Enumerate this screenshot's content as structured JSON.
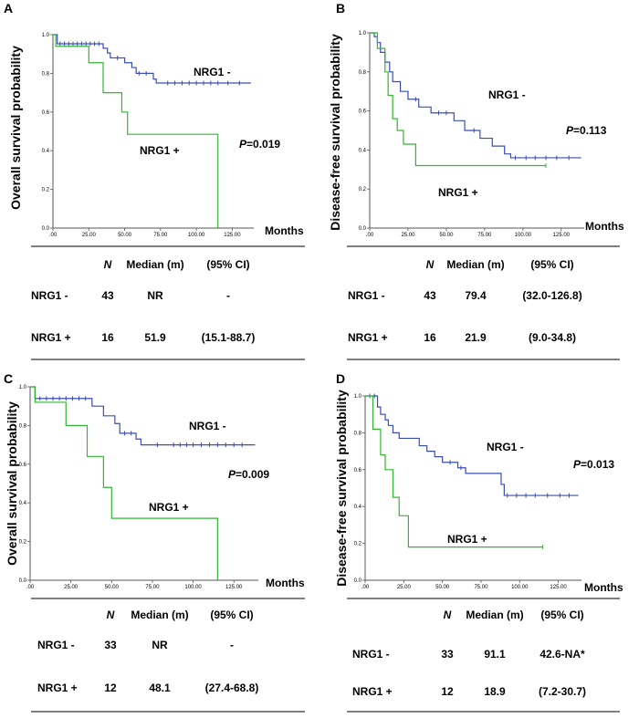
{
  "chart_data": [
    {
      "type": "line",
      "panel": "A",
      "ylabel": "Overall survival probability",
      "xlabel": "Months",
      "xticks": [
        ".00",
        "25.00",
        "50.00",
        "75.00",
        "100.00",
        "125.00"
      ],
      "yticks": [
        "0.0",
        "0.2",
        "0.4",
        "0.6",
        "0.8",
        "1.0"
      ],
      "xlim": [
        0,
        140
      ],
      "ylim": [
        0,
        1
      ],
      "pvalue_label": "P",
      "pvalue_text": "=0.019",
      "series": [
        {
          "name": "NRG1 -",
          "color": "#3a4db5",
          "steps": [
            [
              0,
              1.0
            ],
            [
              3,
              0.953
            ],
            [
              35,
              0.93
            ],
            [
              38,
              0.905
            ],
            [
              40,
              0.88
            ],
            [
              50,
              0.855
            ],
            [
              55,
              0.83
            ],
            [
              58,
              0.8
            ],
            [
              70,
              0.77
            ],
            [
              72,
              0.75
            ],
            [
              138,
              0.75
            ]
          ],
          "censors": [
            5,
            8,
            11,
            14,
            17,
            20,
            23,
            26,
            29,
            32,
            45,
            60,
            65,
            80,
            85,
            90,
            95,
            100,
            105,
            110,
            115,
            122,
            130
          ]
        },
        {
          "name": "NRG1 +",
          "color": "#33b533",
          "steps": [
            [
              0,
              1.0
            ],
            [
              2,
              0.94
            ],
            [
              25,
              0.855
            ],
            [
              35,
              0.7
            ],
            [
              48,
              0.6
            ],
            [
              52,
              0.485
            ],
            [
              115,
              0.0
            ]
          ],
          "censors": []
        }
      ],
      "table": {
        "headers": [
          "N",
          "Median (m)",
          "(95% CI)"
        ],
        "rows": [
          {
            "group": "NRG1 -",
            "n": "43",
            "median": "NR",
            "ci": "-"
          },
          {
            "group": "NRG1 +",
            "n": "16",
            "median": "51.9",
            "ci": "(15.1-88.7)"
          }
        ]
      }
    },
    {
      "type": "line",
      "panel": "B",
      "ylabel": "Disease-free  survival  probability",
      "xlabel": "Months",
      "xticks": [
        ".00",
        "25.00",
        "50.00",
        "75.00",
        "100.00",
        "125.00"
      ],
      "yticks": [
        "0.0",
        "0.2",
        "0.4",
        "0.6",
        "0.8",
        "1.0"
      ],
      "xlim": [
        0,
        140
      ],
      "ylim": [
        0,
        1
      ],
      "pvalue_label": "P",
      "pvalue_text": "=0.113",
      "series": [
        {
          "name": "NRG1 -",
          "color": "#3a4db5",
          "steps": [
            [
              0,
              1.0
            ],
            [
              3,
              0.98
            ],
            [
              5,
              0.95
            ],
            [
              7,
              0.9
            ],
            [
              10,
              0.85
            ],
            [
              13,
              0.8
            ],
            [
              15,
              0.75
            ],
            [
              20,
              0.7
            ],
            [
              25,
              0.66
            ],
            [
              32,
              0.62
            ],
            [
              40,
              0.59
            ],
            [
              55,
              0.55
            ],
            [
              62,
              0.5
            ],
            [
              72,
              0.46
            ],
            [
              80,
              0.42
            ],
            [
              88,
              0.38
            ],
            [
              92,
              0.36
            ],
            [
              138,
              0.36
            ]
          ],
          "censors": [
            30,
            45,
            50,
            68,
            95,
            102,
            108,
            115,
            122,
            130
          ]
        },
        {
          "name": "NRG1 +",
          "color": "#33b533",
          "steps": [
            [
              0,
              1.0
            ],
            [
              5,
              0.92
            ],
            [
              10,
              0.8
            ],
            [
              12,
              0.68
            ],
            [
              15,
              0.56
            ],
            [
              18,
              0.5
            ],
            [
              22,
              0.43
            ],
            [
              30,
              0.32
            ],
            [
              115,
              0.32
            ]
          ],
          "censors": [
            115
          ]
        }
      ],
      "table": {
        "headers": [
          "N",
          "Median (m)",
          "(95% CI)"
        ],
        "rows": [
          {
            "group": "NRG1 -",
            "n": "43",
            "median": "79.4",
            "ci": "(32.0-126.8)"
          },
          {
            "group": "NRG1 +",
            "n": "16",
            "median": "21.9",
            "ci": "(9.0-34.8)"
          }
        ]
      }
    },
    {
      "type": "line",
      "panel": "C",
      "ylabel": "Overall survival probability",
      "xlabel": "Months",
      "xticks": [
        ".00",
        "25.00",
        "50.00",
        "75.00",
        "100.00",
        "125.00"
      ],
      "yticks": [
        "0.0",
        "0.2",
        "0.4",
        "0.6",
        "0.8",
        "1.0"
      ],
      "xlim": [
        0,
        140
      ],
      "ylim": [
        0,
        1
      ],
      "pvalue_label": "P",
      "pvalue_text": "=0.009",
      "series": [
        {
          "name": "NRG1 -",
          "color": "#3a4db5",
          "steps": [
            [
              0,
              1.0
            ],
            [
              3,
              0.94
            ],
            [
              38,
              0.9
            ],
            [
              45,
              0.85
            ],
            [
              52,
              0.81
            ],
            [
              55,
              0.76
            ],
            [
              65,
              0.73
            ],
            [
              68,
              0.7
            ],
            [
              138,
              0.7
            ]
          ],
          "censors": [
            6,
            10,
            14,
            18,
            22,
            26,
            30,
            34,
            58,
            62,
            78,
            88,
            92,
            96,
            100,
            105,
            110,
            115,
            120,
            125,
            130
          ]
        },
        {
          "name": "NRG1 +",
          "color": "#33b533",
          "steps": [
            [
              0,
              1.0
            ],
            [
              3,
              0.92
            ],
            [
              22,
              0.8
            ],
            [
              35,
              0.64
            ],
            [
              45,
              0.48
            ],
            [
              50,
              0.32
            ],
            [
              115,
              0.0
            ]
          ],
          "censors": []
        }
      ],
      "table": {
        "headers": [
          "N",
          "Median (m)",
          "(95% CI)"
        ],
        "rows": [
          {
            "group": "NRG1 -",
            "n": "33",
            "median": "NR",
            "ci": "-"
          },
          {
            "group": "NRG1 +",
            "n": "12",
            "median": "48.1",
            "ci": "(27.4-68.8)"
          }
        ]
      }
    },
    {
      "type": "line",
      "panel": "D",
      "ylabel": "Disease-free  survival  probability",
      "xlabel": "Months",
      "xticks": [
        ".00",
        "25.00",
        "50.00",
        "75.00",
        "100.00",
        "125.00"
      ],
      "yticks": [
        "0.0",
        "0.2",
        "0.4",
        "0.6",
        "0.8",
        "1.0"
      ],
      "xlim": [
        0,
        140
      ],
      "ylim": [
        0,
        1
      ],
      "pvalue_label": "P",
      "pvalue_text": "=0.013",
      "series": [
        {
          "name": "NRG1 -",
          "color": "#3a4db5",
          "steps": [
            [
              0,
              1.0
            ],
            [
              8,
              0.94
            ],
            [
              10,
              0.9
            ],
            [
              13,
              0.87
            ],
            [
              15,
              0.84
            ],
            [
              18,
              0.8
            ],
            [
              22,
              0.77
            ],
            [
              35,
              0.73
            ],
            [
              40,
              0.7
            ],
            [
              45,
              0.67
            ],
            [
              50,
              0.64
            ],
            [
              60,
              0.61
            ],
            [
              65,
              0.58
            ],
            [
              88,
              0.52
            ],
            [
              90,
              0.46
            ],
            [
              138,
              0.46
            ]
          ],
          "censors": [
            3,
            6,
            55,
            62,
            92,
            98,
            104,
            110,
            118,
            126,
            132
          ]
        },
        {
          "name": "NRG1 +",
          "color": "#33b533",
          "steps": [
            [
              0,
              1.0
            ],
            [
              5,
              0.82
            ],
            [
              10,
              0.68
            ],
            [
              13,
              0.6
            ],
            [
              18,
              0.45
            ],
            [
              22,
              0.35
            ],
            [
              28,
              0.18
            ],
            [
              115,
              0.18
            ]
          ],
          "censors": [
            115
          ]
        }
      ],
      "table": {
        "headers": [
          "N",
          "Median (m)",
          "(95% CI)"
        ],
        "rows": [
          {
            "group": "NRG1 -",
            "n": "33",
            "median": "91.1",
            "ci": "42.6-NA*"
          },
          {
            "group": "NRG1 +",
            "n": "12",
            "median": "18.9",
            "ci": "(7.2-30.7)"
          }
        ]
      }
    }
  ]
}
